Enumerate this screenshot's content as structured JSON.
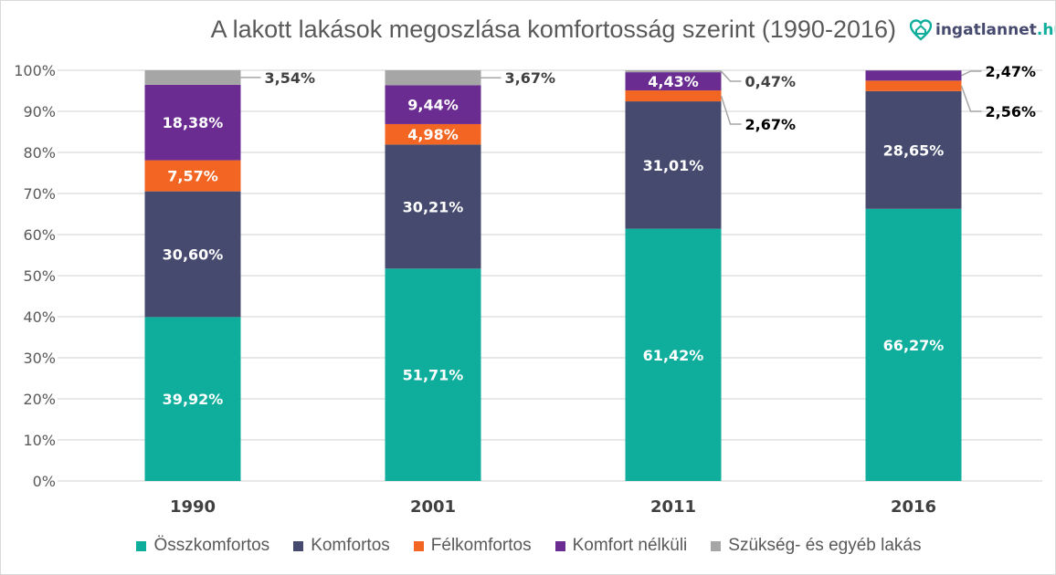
{
  "chart_data": {
    "type": "bar",
    "stacked": true,
    "title": "A lakott lakások megoszlása komfortosság szerint (1990-2016)",
    "categories": [
      "1990",
      "2001",
      "2011",
      "2016"
    ],
    "series": [
      {
        "name": "Összkomfortos",
        "color": "#0FAE9C",
        "values": [
          39.92,
          51.71,
          61.42,
          66.27
        ],
        "labels": [
          "39,92%",
          "51,71%",
          "61,42%",
          "66,27%"
        ]
      },
      {
        "name": "Komfortos",
        "color": "#454A6E",
        "values": [
          30.6,
          30.21,
          31.01,
          28.65
        ],
        "labels": [
          "30,60%",
          "30,21%",
          "31,01%",
          "28,65%"
        ]
      },
      {
        "name": "Félkomfortos",
        "color": "#F26522",
        "values": [
          7.57,
          4.98,
          2.67,
          2.56
        ],
        "labels": [
          "7,57%",
          "4,98%",
          "2,67%",
          "2,56%"
        ]
      },
      {
        "name": "Komfort nélküli",
        "color": "#6A2C91",
        "values": [
          18.38,
          9.44,
          4.43,
          2.47
        ],
        "labels": [
          "18,38%",
          "9,44%",
          "4,43%",
          "2,47%"
        ]
      },
      {
        "name": "Szükség- és egyéb lakás",
        "color": "#A6A6A6",
        "values": [
          3.54,
          3.67,
          0.47,
          null
        ],
        "labels": [
          "3,54%",
          "3,67%",
          "0,47%",
          null
        ]
      }
    ],
    "yticks": [
      "0%",
      "10%",
      "20%",
      "30%",
      "40%",
      "50%",
      "60%",
      "70%",
      "80%",
      "90%",
      "100%"
    ],
    "ylim": [
      0,
      100
    ],
    "grid": true,
    "legend": "bottom"
  },
  "logo": {
    "name": "ingatlannet",
    "tld": ".hu"
  }
}
